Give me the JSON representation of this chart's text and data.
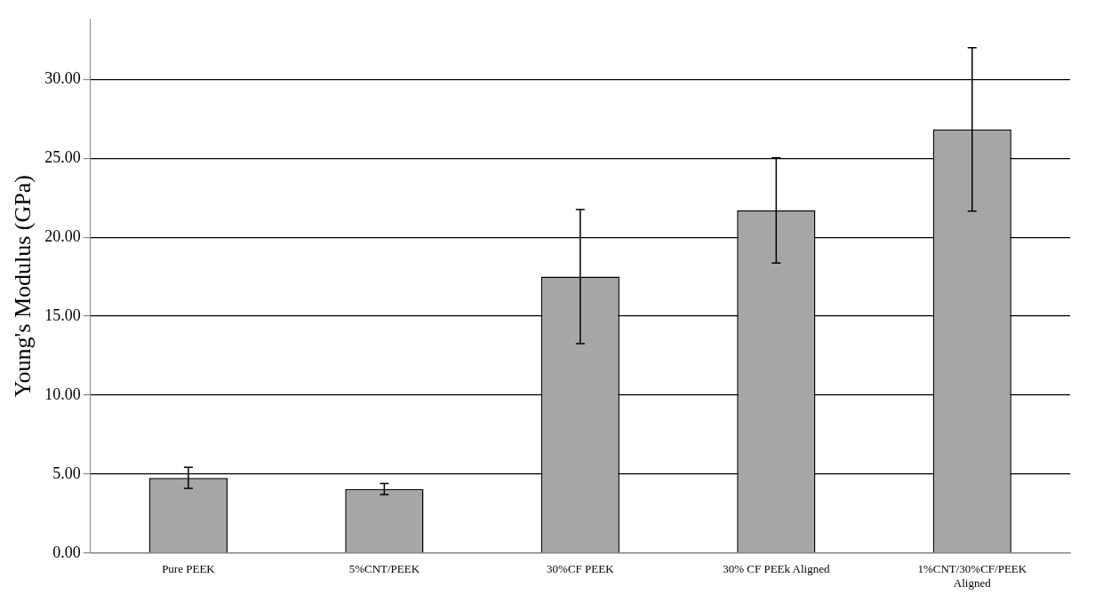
{
  "chart_data": {
    "type": "bar",
    "ylabel": "Young's Modulus (GPa)",
    "categories": [
      "Pure PEEK",
      "5%CNT/PEEK",
      "30%CF PEEK",
      "30% CF PEEk Aligned",
      "1%CNT/30%CF/PEEK Aligned"
    ],
    "values": [
      4.76,
      4.05,
      17.51,
      21.7,
      26.83
    ],
    "errors": [
      0.67,
      0.35,
      4.25,
      3.33,
      5.17
    ],
    "color": "#a6a6a6",
    "ylim": [
      0,
      33.8
    ],
    "yticks": [
      {
        "value": 0,
        "label": "0.00"
      },
      {
        "value": 5,
        "label": "5.00"
      },
      {
        "value": 10,
        "label": "10.00"
      },
      {
        "value": 15,
        "label": "15.00"
      },
      {
        "value": 20,
        "label": "20.00"
      },
      {
        "value": 25,
        "label": "25.00"
      },
      {
        "value": 30,
        "label": "30.00"
      }
    ],
    "grid": "y",
    "legend": false
  }
}
